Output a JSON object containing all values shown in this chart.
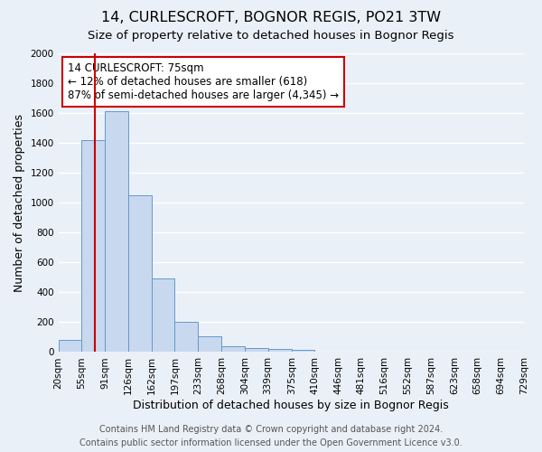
{
  "title": "14, CURLESCROFT, BOGNOR REGIS, PO21 3TW",
  "subtitle": "Size of property relative to detached houses in Bognor Regis",
  "xlabel": "Distribution of detached houses by size in Bognor Regis",
  "ylabel": "Number of detached properties",
  "bar_values": [
    80,
    1420,
    1610,
    1050,
    490,
    205,
    105,
    40,
    28,
    20,
    15,
    0,
    0,
    0,
    0,
    0,
    0,
    0,
    0,
    0
  ],
  "bin_edges": [
    20,
    55,
    91,
    126,
    162,
    197,
    233,
    268,
    304,
    339,
    375,
    410,
    446,
    481,
    516,
    552,
    587,
    623,
    658,
    694,
    729
  ],
  "tick_labels": [
    "20sqm",
    "55sqm",
    "91sqm",
    "126sqm",
    "162sqm",
    "197sqm",
    "233sqm",
    "268sqm",
    "304sqm",
    "339sqm",
    "375sqm",
    "410sqm",
    "446sqm",
    "481sqm",
    "516sqm",
    "552sqm",
    "587sqm",
    "623sqm",
    "658sqm",
    "694sqm",
    "729sqm"
  ],
  "bar_color": "#c8d8ee",
  "bar_edge_color": "#6699cc",
  "vline_x": 75,
  "vline_color": "#cc0000",
  "ylim": [
    0,
    2000
  ],
  "yticks": [
    0,
    200,
    400,
    600,
    800,
    1000,
    1200,
    1400,
    1600,
    1800,
    2000
  ],
  "annotation_text": "14 CURLESCROFT: 75sqm\n← 12% of detached houses are smaller (618)\n87% of semi-detached houses are larger (4,345) →",
  "annotation_box_color": "#ffffff",
  "annotation_box_edge": "#cc0000",
  "footer_line1": "Contains HM Land Registry data © Crown copyright and database right 2024.",
  "footer_line2": "Contains public sector information licensed under the Open Government Licence v3.0.",
  "bg_color": "#eaf0f8",
  "grid_color": "#ffffff",
  "title_fontsize": 11.5,
  "subtitle_fontsize": 9.5,
  "axis_label_fontsize": 9,
  "tick_fontsize": 7.5,
  "annotation_fontsize": 8.5,
  "footer_fontsize": 7
}
